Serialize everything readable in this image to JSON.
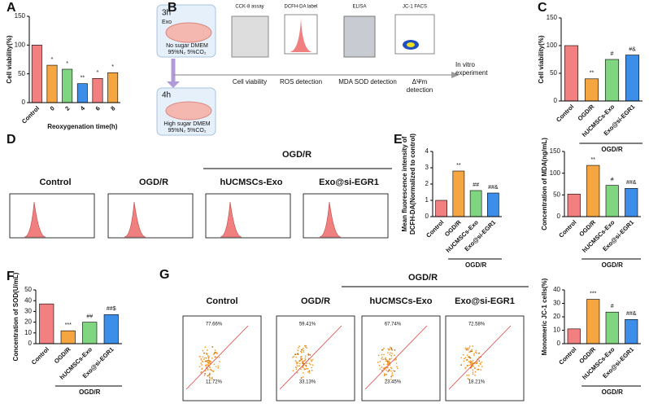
{
  "panel_labels": [
    "A",
    "B",
    "C",
    "D",
    "E",
    "F",
    "G"
  ],
  "schematic": {
    "box1": {
      "time": "3h",
      "agent": "Exo",
      "medium": "No sugar DMEM",
      "gas": "95%N₂ 5%CO₂"
    },
    "box2": {
      "time": "4h",
      "medium": "High sugar DMEM",
      "gas": "95%N₂ 5%CO₂"
    },
    "assays": [
      "CCK-8 assay",
      "DCFH-DA label",
      "ELISA",
      "JC-1 FACS"
    ],
    "readouts": [
      [
        "Cell viability"
      ],
      [
        "ROS detection"
      ],
      [
        "MDA SOD detection"
      ],
      [
        "ΔΨm",
        "detection"
      ]
    ],
    "endpoint": [
      "In vitro",
      "experiment"
    ]
  },
  "histograms": {
    "group_label": "OGD/R",
    "titles": [
      "Control",
      "OGD/R",
      "hUCMSCs-Exo",
      "Exo@si-EGR1"
    ]
  },
  "flow": {
    "group_label": "OGD/R",
    "titles": [
      "Control",
      "OGD/R",
      "hUCMSCs-Exo",
      "Exo@si-EGR1"
    ],
    "upper": [
      "77.66%",
      "59.41%",
      "67.74%",
      "72.58%"
    ],
    "lower": [
      "11.72%",
      "33.13%",
      "23.45%",
      "18.21%"
    ]
  },
  "chart_data": [
    {
      "type": "bar",
      "ylabel": "Cell viability(%)",
      "xlabel": "Reoxygenation time(h)",
      "categories": [
        "Control",
        "0",
        "2",
        "4",
        "6",
        "8"
      ],
      "values": [
        100,
        65,
        58,
        33,
        42,
        52
      ],
      "colors": [
        "#f28080",
        "#f5a640",
        "#80d680",
        "#3d8ee8",
        "#f28080",
        "#f5a640"
      ],
      "annotations": [
        null,
        "*",
        "*",
        "**",
        "*",
        "*"
      ],
      "ylim": [
        0,
        150
      ],
      "yticks": [
        0,
        50,
        100,
        150
      ]
    },
    {
      "type": "bar",
      "ylabel": "Cell viability(%)",
      "group_label": "OGD/R",
      "categories": [
        "Control",
        "OGD/R",
        "hUCMSCs-Exo",
        "Exo@si-EGR1"
      ],
      "values": [
        100,
        40,
        75,
        83
      ],
      "colors": [
        "#f28080",
        "#f5a640",
        "#80d680",
        "#3d8ee8"
      ],
      "annotations": [
        null,
        "**",
        "#",
        "#&"
      ],
      "ylim": [
        0,
        150
      ],
      "yticks": [
        0,
        50,
        100,
        150
      ]
    },
    {
      "type": "bar",
      "ylabel": [
        "Mean fluorescence intensity of",
        "DCFH-DA(Normalized to control)"
      ],
      "group_label": "OGD/R",
      "categories": [
        "Control",
        "OGD/R",
        "hUCMSCs-Exo",
        "Exo@si-EGR1"
      ],
      "values": [
        1.0,
        2.8,
        1.6,
        1.45
      ],
      "colors": [
        "#f28080",
        "#f5a640",
        "#80d680",
        "#3d8ee8"
      ],
      "annotations": [
        null,
        "**",
        "##",
        "##&"
      ],
      "ylim": [
        0,
        4
      ],
      "yticks": [
        0,
        1,
        2,
        3,
        4
      ]
    },
    {
      "type": "bar",
      "ylabel": "Concentration of MDA(ng/mL)",
      "group_label": "OGD/R",
      "categories": [
        "Control",
        "OGD/R",
        "hUCMSCs-Exo",
        "Exo@si-EGR1"
      ],
      "values": [
        52,
        118,
        72,
        65
      ],
      "colors": [
        "#f28080",
        "#f5a640",
        "#80d680",
        "#3d8ee8"
      ],
      "annotations": [
        null,
        "**",
        "#",
        "##&"
      ],
      "ylim": [
        0,
        150
      ],
      "yticks": [
        0,
        50,
        100,
        150
      ]
    },
    {
      "type": "bar",
      "ylabel": "Concentration of SOD(U/mL)",
      "group_label": "OGD/R",
      "categories": [
        "Control",
        "OGD/R",
        "hUCMSCs-Exo",
        "Exo@si-EGR1"
      ],
      "values": [
        37,
        12,
        20,
        27
      ],
      "colors": [
        "#f28080",
        "#f5a640",
        "#80d680",
        "#3d8ee8"
      ],
      "annotations": [
        null,
        "***",
        "##",
        "##$"
      ],
      "ylim": [
        0,
        50
      ],
      "yticks": [
        0,
        10,
        20,
        30,
        40,
        50
      ]
    },
    {
      "type": "bar",
      "ylabel": "Monomeric JC-1 cells(%)",
      "group_label": "OGD/R",
      "categories": [
        "Control",
        "OGD/R",
        "hUCMSCs-Exo",
        "Exo@si-EGR1"
      ],
      "values": [
        11,
        33,
        23.5,
        18
      ],
      "colors": [
        "#f28080",
        "#f5a640",
        "#80d680",
        "#3d8ee8"
      ],
      "annotations": [
        null,
        "***",
        "#",
        "##&"
      ],
      "ylim": [
        0,
        40
      ],
      "yticks": [
        0,
        10,
        20,
        30,
        40
      ]
    }
  ]
}
